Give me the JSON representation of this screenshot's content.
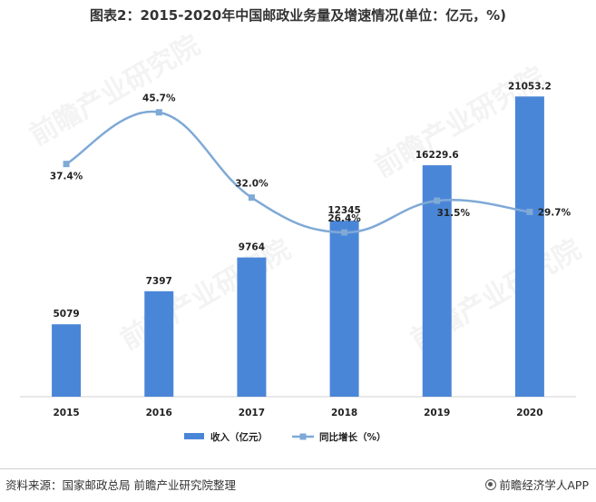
{
  "title": "图表2：2015-2020年中国邮政业务量及增速情况(单位：亿元，%)",
  "source": "资料来源：国家邮政总局 前瞻产业研究院整理",
  "brand": "前瞻经济学人APP",
  "watermark": "前瞻产业研究院",
  "colors": {
    "bar": "#4a86d8",
    "line": "#7fa9d6",
    "axis": "#d0d0d0"
  },
  "chart_data": {
    "type": "bar+line",
    "categories": [
      "2015",
      "2016",
      "2017",
      "2018",
      "2019",
      "2020"
    ],
    "series": [
      {
        "name": "收入（亿元）",
        "type": "bar",
        "values": [
          5079,
          7397,
          9764,
          12345,
          16229.6,
          21053.2
        ],
        "labels": [
          "5079",
          "7397",
          "9764",
          "12345",
          "16229.6",
          "21053.2"
        ]
      },
      {
        "name": "同比增长（%）",
        "type": "line",
        "values": [
          37.4,
          45.7,
          32.0,
          26.4,
          31.5,
          29.7
        ],
        "labels": [
          "37.4%",
          "45.7%",
          "32.0%",
          "26.4%",
          "31.5%",
          "29.7%"
        ]
      }
    ],
    "bar_ylim": [
      0,
      24000
    ],
    "line_ylim": [
      0,
      55
    ],
    "legend_position": "bottom"
  }
}
